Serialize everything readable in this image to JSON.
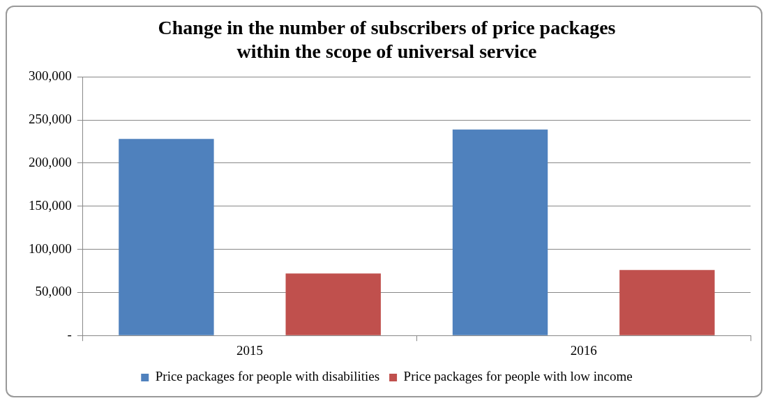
{
  "chart_data": {
    "type": "bar",
    "title": "Change in the number of subscribers of price packages\nwithin the scope of universal service",
    "categories": [
      "2015",
      "2016"
    ],
    "series": [
      {
        "name": "Price packages for people with disabilities",
        "color": "#4f81bd",
        "values": [
          228000,
          239000
        ]
      },
      {
        "name": "Price packages for people with low income",
        "color": "#c0504d",
        "values": [
          72000,
          76000
        ]
      }
    ],
    "ylim": [
      0,
      300000
    ],
    "yticks": [
      {
        "value": 0,
        "label": "-"
      },
      {
        "value": 50000,
        "label": "50,000"
      },
      {
        "value": 100000,
        "label": "100,000"
      },
      {
        "value": 150000,
        "label": "150,000"
      },
      {
        "value": 200000,
        "label": "200,000"
      },
      {
        "value": 250000,
        "label": "250,000"
      },
      {
        "value": 300000,
        "label": "300,000"
      }
    ],
    "grid": "y",
    "legend": "bottom"
  }
}
